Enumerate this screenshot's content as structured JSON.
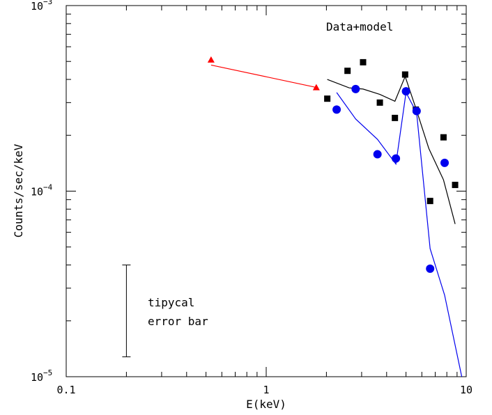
{
  "chart_data": {
    "type": "scatter",
    "title": "",
    "xlabel": "E(keV)",
    "ylabel": "Counts/sec/keV",
    "xscale": "log",
    "yscale": "log",
    "xlim": [
      0.1,
      10
    ],
    "ylim": [
      1e-05,
      0.001
    ],
    "x_tick_labels": [
      {
        "value": 0.1,
        "label": "0.1"
      },
      {
        "value": 1,
        "label": "1"
      },
      {
        "value": 10,
        "label": "10"
      }
    ],
    "y_tick_labels": [
      {
        "value": 1e-05,
        "mantissa": "10",
        "exponent": "−5"
      },
      {
        "value": 0.0001,
        "mantissa": "10",
        "exponent": "−4"
      },
      {
        "value": 0.001,
        "mantissa": "10",
        "exponent": "−3"
      }
    ],
    "annotations": {
      "legend_text": "Data+model",
      "error_bar_label_line1": "tipycal",
      "error_bar_label_line2": "error bar"
    },
    "error_bar": {
      "x": 0.2,
      "y_low": 1.28e-05,
      "y_high": 4e-05
    },
    "series": [
      {
        "marker": "triangle",
        "color": "#ff0000",
        "points": [
          {
            "x": 0.53,
            "y": 0.00051
          },
          {
            "x": 1.78,
            "y": 0.000362
          }
        ]
      },
      {
        "line": true,
        "color": "#ff0000",
        "points": [
          {
            "x": 0.53,
            "y": 0.000478
          },
          {
            "x": 1.78,
            "y": 0.000362
          }
        ]
      },
      {
        "marker": "square",
        "color": "#000000",
        "points": [
          {
            "x": 2.02,
            "y": 0.000315
          },
          {
            "x": 2.55,
            "y": 0.000445
          },
          {
            "x": 3.05,
            "y": 0.000495
          },
          {
            "x": 3.7,
            "y": 0.0003
          },
          {
            "x": 4.4,
            "y": 0.000248
          },
          {
            "x": 4.95,
            "y": 0.000425
          },
          {
            "x": 5.6,
            "y": 0.000275
          },
          {
            "x": 6.6,
            "y": 8.85e-05
          },
          {
            "x": 7.7,
            "y": 0.000195
          },
          {
            "x": 8.8,
            "y": 0.000108
          }
        ]
      },
      {
        "line": true,
        "color": "#000000",
        "points": [
          {
            "x": 2.02,
            "y": 0.0004
          },
          {
            "x": 2.6,
            "y": 0.00036
          },
          {
            "x": 3.05,
            "y": 0.000355
          },
          {
            "x": 3.7,
            "y": 0.000332
          },
          {
            "x": 4.4,
            "y": 0.000305
          },
          {
            "x": 4.95,
            "y": 0.000415
          },
          {
            "x": 5.6,
            "y": 0.00028
          },
          {
            "x": 6.5,
            "y": 0.00017
          },
          {
            "x": 7.7,
            "y": 0.000115
          },
          {
            "x": 8.8,
            "y": 6.65e-05
          }
        ]
      },
      {
        "marker": "circle",
        "color": "#0000ee",
        "points": [
          {
            "x": 2.25,
            "y": 0.000275
          },
          {
            "x": 2.8,
            "y": 0.000355
          },
          {
            "x": 3.6,
            "y": 0.000158
          },
          {
            "x": 4.45,
            "y": 0.00015
          },
          {
            "x": 5.0,
            "y": 0.000345
          },
          {
            "x": 5.65,
            "y": 0.00027
          },
          {
            "x": 6.6,
            "y": 3.82e-05
          },
          {
            "x": 7.8,
            "y": 0.000142
          }
        ]
      },
      {
        "line": true,
        "color": "#0000ee",
        "points": [
          {
            "x": 2.25,
            "y": 0.00034
          },
          {
            "x": 2.8,
            "y": 0.000245
          },
          {
            "x": 3.6,
            "y": 0.00019
          },
          {
            "x": 4.45,
            "y": 0.00014
          },
          {
            "x": 5.0,
            "y": 0.00034
          },
          {
            "x": 5.65,
            "y": 0.000265
          },
          {
            "x": 6.6,
            "y": 4.9e-05
          },
          {
            "x": 7.8,
            "y": 2.75e-05
          },
          {
            "x": 9.5,
            "y": 1e-05
          }
        ]
      }
    ]
  }
}
